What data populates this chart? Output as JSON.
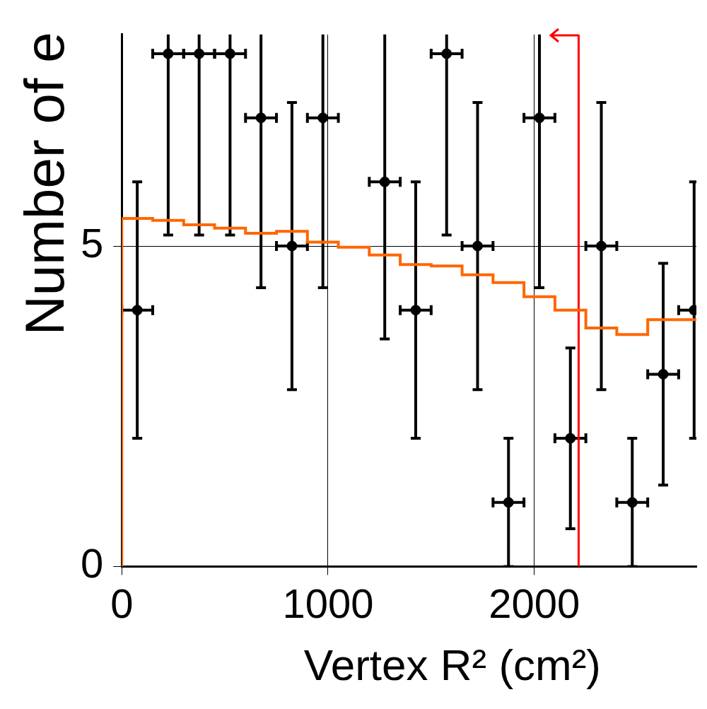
{
  "chart_data": {
    "type": "scatter",
    "xlabel": "Vertex R² (cm²)",
    "ylabel": "Number of e",
    "xlim": [
      0,
      2786
    ],
    "xticks": [
      0,
      1000,
      2000
    ],
    "ylim": [
      0,
      8.3
    ],
    "yticks": [
      0,
      5
    ],
    "grid": true,
    "legend": false,
    "series": [
      {
        "type": "step",
        "marker": "none",
        "color": "#ff6600",
        "x": [
          0,
          0,
          150,
          300,
          450,
          600,
          750,
          900,
          1050,
          1200,
          1350,
          1500,
          1650,
          1800,
          1950,
          2100,
          2250,
          2400,
          2550,
          2700,
          2786
        ],
        "values": [
          0,
          5.44,
          5.43,
          5.4,
          5.33,
          5.28,
          5.2,
          5.23,
          5.06,
          4.98,
          4.86,
          4.71,
          4.69,
          4.55,
          4.43,
          4.21,
          4.0,
          3.72,
          3.62,
          3.85,
          3.85
        ]
      },
      {
        "marker": "circle",
        "color": "#000000",
        "x": [
          75,
          225,
          375,
          525,
          675,
          825,
          975,
          1125,
          1275,
          1425,
          1575,
          1725,
          1875,
          2025,
          2175,
          2325,
          2475,
          2625,
          2775
        ],
        "values": [
          4,
          8,
          8,
          8,
          7,
          5,
          7,
          null,
          6,
          4,
          8,
          5,
          1,
          7,
          2,
          5,
          1,
          3,
          4
        ],
        "errors": [
          2,
          2.83,
          2.83,
          2.83,
          2.65,
          2.24,
          2.65,
          null,
          2.45,
          2,
          2.83,
          2.24,
          1,
          2.65,
          1.41,
          2.24,
          1,
          1.73,
          2
        ],
        "xerrors": [
          75,
          75,
          75,
          75,
          75,
          75,
          75,
          null,
          75,
          75,
          75,
          75,
          75,
          75,
          75,
          75,
          75,
          75,
          75
        ]
      }
    ],
    "ref_lines": [
      {
        "axis": "x",
        "value": 2215,
        "color": "#ff0000"
      }
    ]
  }
}
